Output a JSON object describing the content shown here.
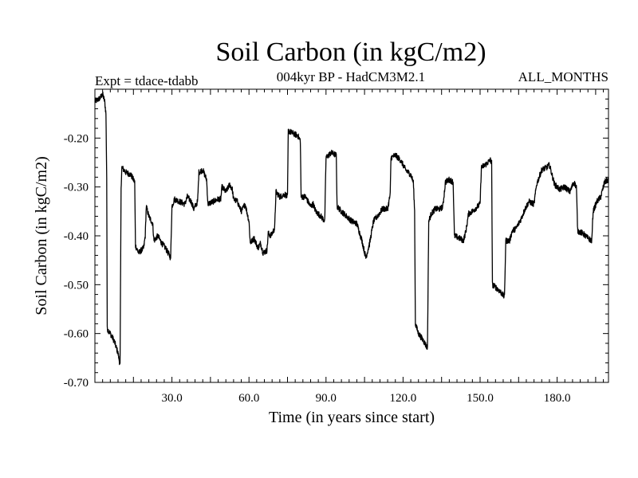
{
  "chart_data": {
    "type": "line",
    "title": "Soil Carbon (in kgC/m2)",
    "subtitle_left": "Expt = tdace-tdabb",
    "subtitle_center": "004kyr BP - HadCM3M2.1",
    "subtitle_right": "ALL_MONTHS",
    "xlabel": "Time (in years since start)",
    "ylabel": "Soil Carbon (in kgC/m2)",
    "xlim": [
      0,
      200
    ],
    "ylim": [
      -0.7,
      -0.1
    ],
    "xticks": [
      30,
      60,
      90,
      120,
      150,
      180
    ],
    "xtick_labels": [
      "30.0",
      "60.0",
      "90.0",
      "120.0",
      "150.0",
      "180.0"
    ],
    "yticks": [
      -0.7,
      -0.6,
      -0.5,
      -0.4,
      -0.3,
      -0.2
    ],
    "ytick_labels": [
      "-0.70",
      "-0.60",
      "-0.50",
      "-0.40",
      "-0.30",
      "-0.20"
    ],
    "series": [
      {
        "name": "tdace-tdabb",
        "color": "#000000",
        "points": [
          [
            0.0,
            -0.125
          ],
          [
            1.0,
            -0.122
          ],
          [
            2.0,
            -0.118
          ],
          [
            3.0,
            -0.11
          ],
          [
            3.8,
            -0.125
          ],
          [
            4.3,
            -0.15
          ],
          [
            4.6,
            -0.28
          ],
          [
            4.8,
            -0.59
          ],
          [
            6.0,
            -0.6
          ],
          [
            7.5,
            -0.615
          ],
          [
            9.0,
            -0.64
          ],
          [
            9.8,
            -0.665
          ],
          [
            10.2,
            -0.3
          ],
          [
            10.5,
            -0.26
          ],
          [
            12.0,
            -0.27
          ],
          [
            14.0,
            -0.275
          ],
          [
            15.5,
            -0.29
          ],
          [
            15.8,
            -0.42
          ],
          [
            17.0,
            -0.435
          ],
          [
            19.0,
            -0.425
          ],
          [
            19.6,
            -0.4
          ],
          [
            20.0,
            -0.34
          ],
          [
            21.0,
            -0.36
          ],
          [
            22.5,
            -0.375
          ],
          [
            23.0,
            -0.41
          ],
          [
            24.5,
            -0.4
          ],
          [
            26.0,
            -0.415
          ],
          [
            27.5,
            -0.425
          ],
          [
            29.5,
            -0.445
          ],
          [
            30.0,
            -0.34
          ],
          [
            31.0,
            -0.325
          ],
          [
            33.0,
            -0.33
          ],
          [
            35.0,
            -0.335
          ],
          [
            36.0,
            -0.32
          ],
          [
            37.5,
            -0.33
          ],
          [
            38.5,
            -0.345
          ],
          [
            40.0,
            -0.33
          ],
          [
            40.5,
            -0.27
          ],
          [
            42.0,
            -0.265
          ],
          [
            43.5,
            -0.285
          ],
          [
            44.0,
            -0.335
          ],
          [
            46.0,
            -0.33
          ],
          [
            48.0,
            -0.325
          ],
          [
            49.0,
            -0.325
          ],
          [
            49.5,
            -0.3
          ],
          [
            51.0,
            -0.31
          ],
          [
            52.5,
            -0.295
          ],
          [
            53.5,
            -0.305
          ],
          [
            54.0,
            -0.325
          ],
          [
            55.5,
            -0.33
          ],
          [
            57.0,
            -0.35
          ],
          [
            58.5,
            -0.335
          ],
          [
            60.0,
            -0.37
          ],
          [
            60.5,
            -0.415
          ],
          [
            62.0,
            -0.405
          ],
          [
            63.5,
            -0.425
          ],
          [
            64.5,
            -0.415
          ],
          [
            65.5,
            -0.435
          ],
          [
            67.0,
            -0.43
          ],
          [
            67.5,
            -0.395
          ],
          [
            68.5,
            -0.4
          ],
          [
            70.0,
            -0.385
          ],
          [
            70.5,
            -0.31
          ],
          [
            72.0,
            -0.32
          ],
          [
            74.0,
            -0.315
          ],
          [
            75.0,
            -0.32
          ],
          [
            75.3,
            -0.185
          ],
          [
            77.0,
            -0.19
          ],
          [
            79.0,
            -0.195
          ],
          [
            80.0,
            -0.205
          ],
          [
            80.3,
            -0.32
          ],
          [
            82.0,
            -0.32
          ],
          [
            84.0,
            -0.34
          ],
          [
            85.0,
            -0.335
          ],
          [
            86.0,
            -0.35
          ],
          [
            88.0,
            -0.36
          ],
          [
            89.5,
            -0.37
          ],
          [
            90.0,
            -0.24
          ],
          [
            92.0,
            -0.23
          ],
          [
            94.0,
            -0.235
          ],
          [
            94.3,
            -0.34
          ],
          [
            96.0,
            -0.35
          ],
          [
            98.0,
            -0.36
          ],
          [
            100.0,
            -0.37
          ],
          [
            102.0,
            -0.375
          ],
          [
            104.0,
            -0.41
          ],
          [
            105.5,
            -0.445
          ],
          [
            107.0,
            -0.415
          ],
          [
            108.5,
            -0.37
          ],
          [
            110.0,
            -0.36
          ],
          [
            112.0,
            -0.345
          ],
          [
            114.0,
            -0.345
          ],
          [
            115.0,
            -0.315
          ],
          [
            115.3,
            -0.24
          ],
          [
            117.0,
            -0.235
          ],
          [
            119.0,
            -0.245
          ],
          [
            121.0,
            -0.265
          ],
          [
            123.0,
            -0.275
          ],
          [
            124.0,
            -0.29
          ],
          [
            124.5,
            -0.35
          ],
          [
            124.8,
            -0.58
          ],
          [
            126.0,
            -0.6
          ],
          [
            128.0,
            -0.615
          ],
          [
            129.5,
            -0.63
          ],
          [
            130.0,
            -0.37
          ],
          [
            131.0,
            -0.355
          ],
          [
            132.5,
            -0.345
          ],
          [
            134.5,
            -0.345
          ],
          [
            135.5,
            -0.34
          ],
          [
            136.5,
            -0.29
          ],
          [
            138.0,
            -0.285
          ],
          [
            139.5,
            -0.29
          ],
          [
            140.0,
            -0.4
          ],
          [
            142.0,
            -0.405
          ],
          [
            143.5,
            -0.41
          ],
          [
            144.5,
            -0.39
          ],
          [
            145.5,
            -0.355
          ],
          [
            147.0,
            -0.35
          ],
          [
            149.0,
            -0.34
          ],
          [
            150.0,
            -0.335
          ],
          [
            150.5,
            -0.26
          ],
          [
            152.0,
            -0.255
          ],
          [
            154.0,
            -0.245
          ],
          [
            154.5,
            -0.25
          ],
          [
            154.8,
            -0.5
          ],
          [
            156.0,
            -0.505
          ],
          [
            158.0,
            -0.515
          ],
          [
            159.5,
            -0.525
          ],
          [
            160.0,
            -0.41
          ],
          [
            161.5,
            -0.41
          ],
          [
            162.5,
            -0.39
          ],
          [
            164.0,
            -0.385
          ],
          [
            166.0,
            -0.365
          ],
          [
            167.5,
            -0.345
          ],
          [
            169.0,
            -0.33
          ],
          [
            171.0,
            -0.335
          ],
          [
            172.0,
            -0.295
          ],
          [
            174.0,
            -0.265
          ],
          [
            176.0,
            -0.26
          ],
          [
            177.0,
            -0.255
          ],
          [
            179.0,
            -0.295
          ],
          [
            181.0,
            -0.305
          ],
          [
            183.0,
            -0.3
          ],
          [
            185.0,
            -0.31
          ],
          [
            186.5,
            -0.29
          ],
          [
            187.5,
            -0.3
          ],
          [
            188.0,
            -0.39
          ],
          [
            190.0,
            -0.395
          ],
          [
            192.0,
            -0.405
          ],
          [
            193.5,
            -0.41
          ],
          [
            194.0,
            -0.35
          ],
          [
            195.5,
            -0.33
          ],
          [
            197.0,
            -0.32
          ],
          [
            198.5,
            -0.29
          ],
          [
            200.0,
            -0.285
          ]
        ]
      }
    ]
  }
}
